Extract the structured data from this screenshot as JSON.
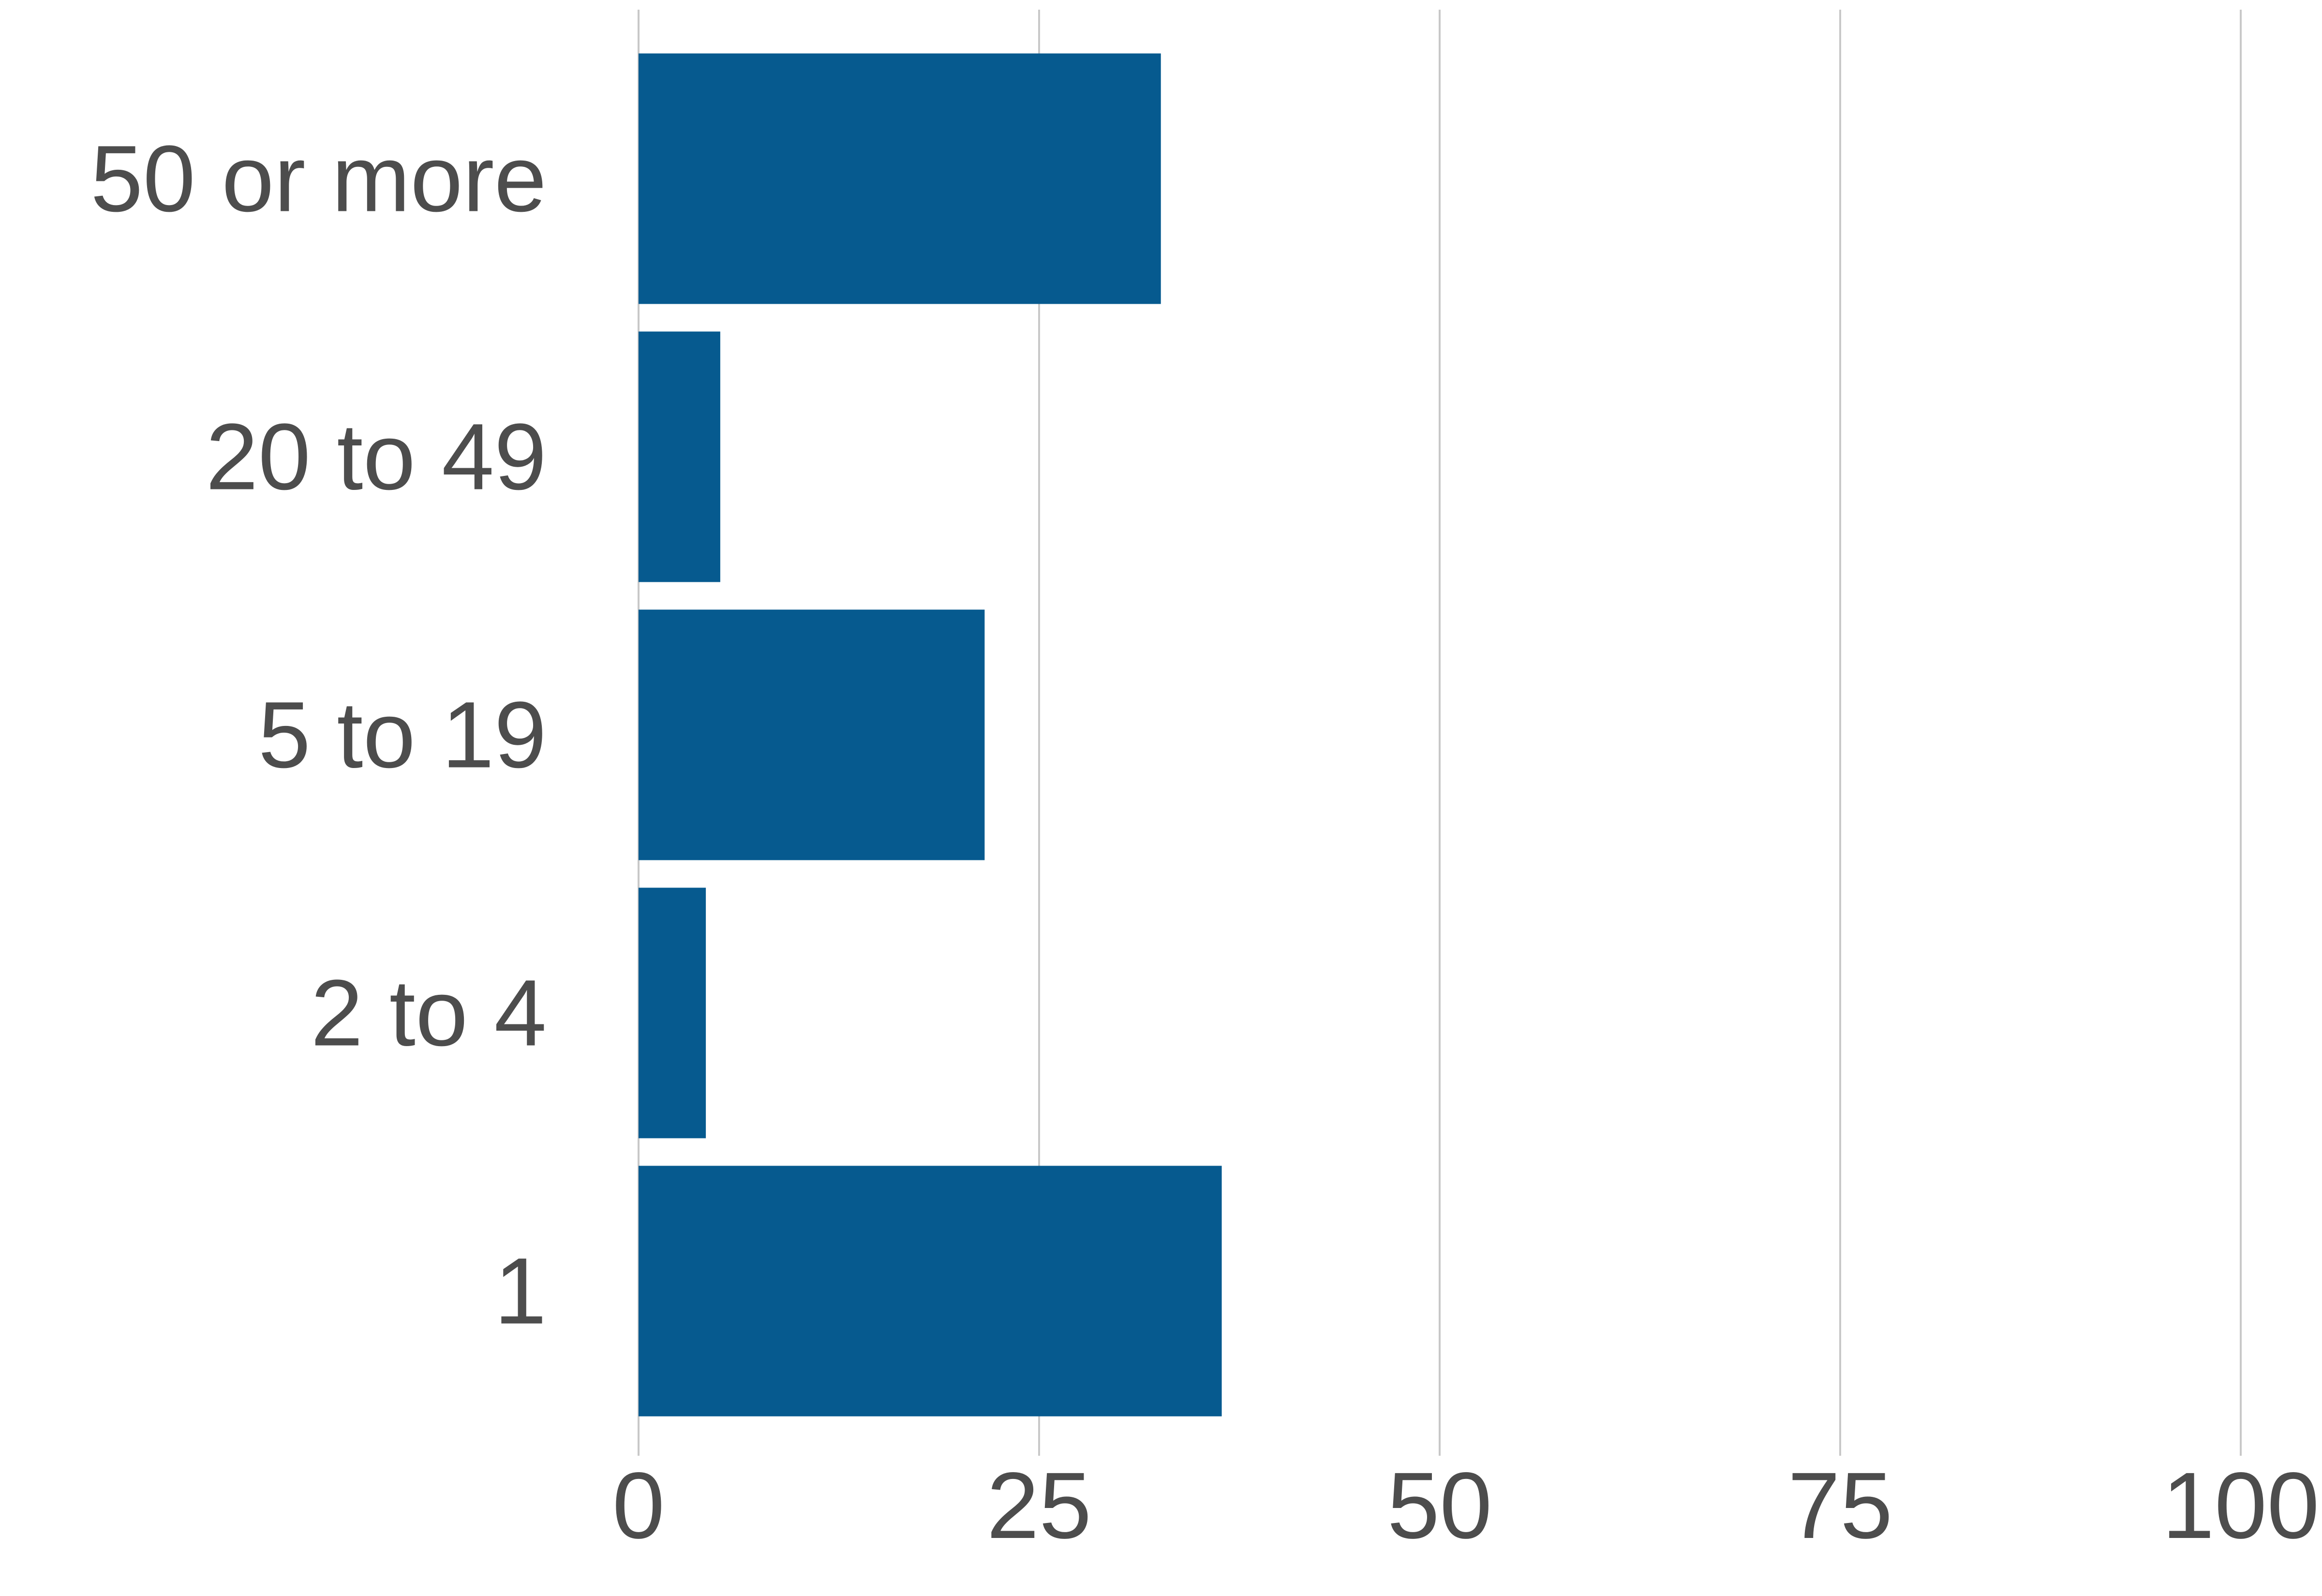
{
  "chart_data": {
    "type": "bar",
    "orientation": "horizontal",
    "title": "",
    "xlabel": "",
    "ylabel": "",
    "categories": [
      "50 or more",
      "20 to 49",
      "5 to 19",
      "2 to 4",
      "1"
    ],
    "values": [
      32.6,
      5.1,
      21.6,
      4.2,
      36.4
    ],
    "xlim": [
      0,
      100
    ],
    "xticks": [
      0,
      25,
      50,
      75,
      100
    ],
    "xtick_labels": [
      "0",
      "25",
      "50",
      "75",
      "100"
    ],
    "grid": "vertical",
    "legend": "none",
    "colors": {
      "bar": "#065a8f",
      "grid": "#c8c8c8",
      "text": "#4d4d4d"
    }
  }
}
